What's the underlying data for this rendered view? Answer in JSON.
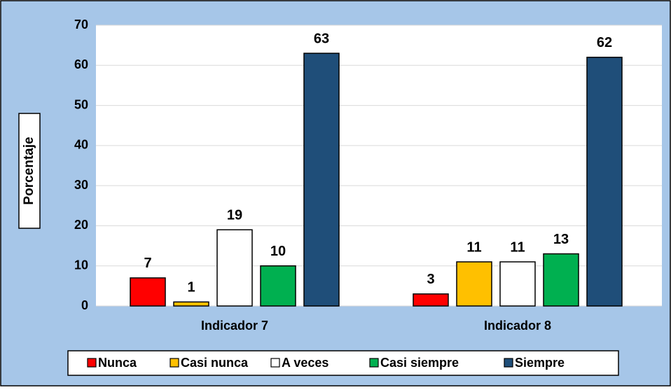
{
  "chart_data": {
    "type": "bar",
    "y_label": "Porcentaje",
    "categories": [
      "Indicador 7",
      "Indicador 8"
    ],
    "series": [
      {
        "name": "Nunca",
        "color": "#ff0000",
        "values": [
          7,
          3
        ]
      },
      {
        "name": "Casi nunca",
        "color": "#ffc000",
        "values": [
          1,
          11
        ]
      },
      {
        "name": "A veces",
        "color": "#ffffff",
        "values": [
          19,
          11
        ]
      },
      {
        "name": "Casi siempre",
        "color": "#00b050",
        "values": [
          10,
          13
        ]
      },
      {
        "name": "Siempre",
        "color": "#1f4e79",
        "values": [
          63,
          62
        ]
      }
    ],
    "ylim": [
      0,
      70
    ],
    "yticks": [
      0,
      10,
      20,
      30,
      40,
      50,
      60,
      70
    ],
    "grid": true,
    "legend": "bottom"
  }
}
